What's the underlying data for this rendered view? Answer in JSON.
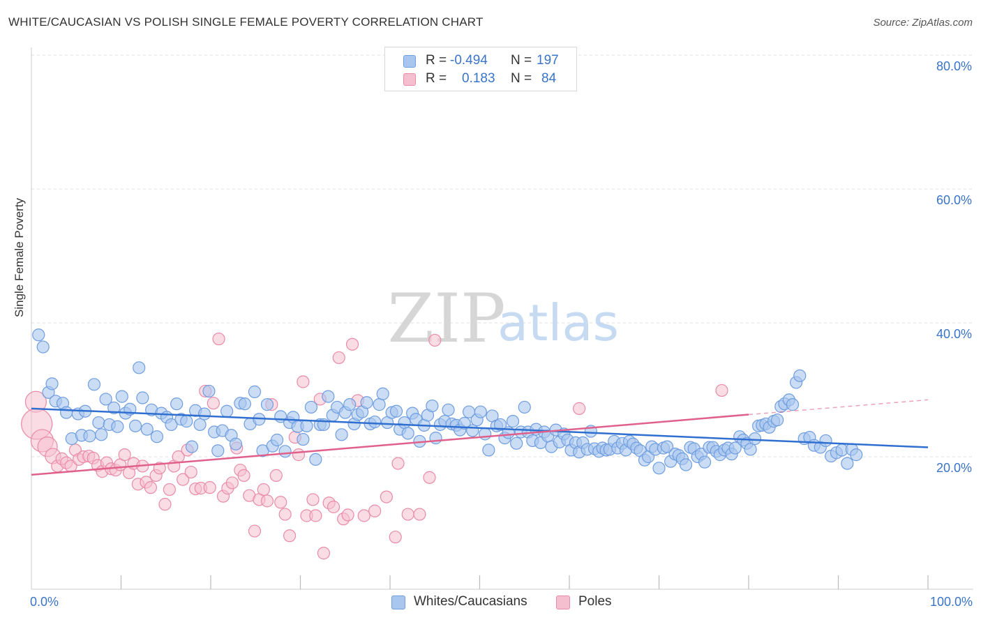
{
  "header": {
    "title": "WHITE/CAUCASIAN VS POLISH SINGLE FEMALE POVERTY CORRELATION CHART",
    "source": "Source: ZipAtlas.com"
  },
  "watermark": {
    "zip": "ZIP",
    "atlas": "atlas"
  },
  "legend": {
    "r_label": "R =",
    "n_label": "N =",
    "series": [
      {
        "r": "-0.494",
        "n": "197"
      },
      {
        "r": "0.183",
        "n": "84"
      }
    ]
  },
  "bottom_legend": [
    {
      "label": "Whites/Caucasians"
    },
    {
      "label": "Poles"
    }
  ],
  "colors": {
    "blue_fill": "#a9c6ef",
    "blue_stroke": "#6e9de0",
    "blue_line": "#2f6fd0",
    "pink_fill": "#f6bfd0",
    "pink_stroke": "#e98aa8",
    "pink_line": "#e0608c",
    "tick_text": "#3a74c9",
    "grid": "#dddddd"
  },
  "chart_data": {
    "type": "scatter",
    "title": "WHITE/CAUCASIAN VS POLISH SINGLE FEMALE POVERTY CORRELATION CHART",
    "xlabel": "",
    "ylabel": "Single Female Poverty",
    "xlim": [
      0,
      100
    ],
    "ylim": [
      0,
      80
    ],
    "y_ticks": [
      {
        "value": 20,
        "label": "20.0%"
      },
      {
        "value": 40,
        "label": "40.0%"
      },
      {
        "value": 60,
        "label": "60.0%"
      },
      {
        "value": 80,
        "label": "80.0%"
      }
    ],
    "x_tick_labels": [
      {
        "value": 0,
        "label": "0.0%"
      },
      {
        "value": 100,
        "label": "100.0%"
      }
    ],
    "x_minor_ticks": [
      10,
      20,
      30,
      40,
      50,
      60,
      70,
      80,
      90,
      100
    ],
    "grid": true,
    "legend_position": "top-center",
    "series": [
      {
        "name": "Whites/Caucasians",
        "r": -0.494,
        "n": 197,
        "trend": {
          "x": [
            0,
            100
          ],
          "y": [
            27.2,
            21.4
          ]
        },
        "points": [
          [
            0.8,
            38.2
          ],
          [
            1.3,
            36.4
          ],
          [
            1.9,
            29.6
          ],
          [
            2.3,
            30.9
          ],
          [
            2.7,
            28.3
          ],
          [
            3.5,
            28.0
          ],
          [
            3.9,
            26.6
          ],
          [
            4.5,
            22.7
          ],
          [
            5.2,
            26.4
          ],
          [
            5.6,
            23.2
          ],
          [
            6.0,
            26.8
          ],
          [
            6.5,
            23.1
          ],
          [
            7.0,
            30.8
          ],
          [
            7.5,
            25.1
          ],
          [
            7.8,
            23.3
          ],
          [
            8.3,
            28.6
          ],
          [
            8.7,
            24.8
          ],
          [
            9.2,
            27.3
          ],
          [
            9.6,
            24.5
          ],
          [
            10.1,
            29.0
          ],
          [
            10.5,
            26.5
          ],
          [
            11.0,
            27.1
          ],
          [
            11.6,
            24.6
          ],
          [
            12.0,
            33.3
          ],
          [
            12.4,
            28.8
          ],
          [
            12.9,
            24.1
          ],
          [
            13.4,
            27.0
          ],
          [
            14.0,
            23.0
          ],
          [
            14.5,
            26.5
          ],
          [
            15.1,
            25.9
          ],
          [
            15.6,
            24.8
          ],
          [
            16.2,
            27.9
          ],
          [
            16.7,
            25.6
          ],
          [
            17.3,
            25.3
          ],
          [
            17.9,
            21.5
          ],
          [
            18.3,
            26.9
          ],
          [
            18.8,
            24.8
          ],
          [
            19.3,
            26.4
          ],
          [
            19.8,
            29.8
          ],
          [
            20.4,
            23.7
          ],
          [
            20.8,
            20.9
          ],
          [
            21.3,
            23.9
          ],
          [
            21.8,
            26.8
          ],
          [
            22.3,
            23.2
          ],
          [
            22.8,
            21.9
          ],
          [
            23.3,
            28.0
          ],
          [
            23.8,
            27.9
          ],
          [
            24.4,
            24.9
          ],
          [
            24.9,
            29.7
          ],
          [
            25.4,
            25.6
          ],
          [
            25.8,
            20.9
          ],
          [
            26.3,
            27.8
          ],
          [
            26.9,
            21.6
          ],
          [
            27.4,
            22.5
          ],
          [
            27.8,
            26.0
          ],
          [
            28.3,
            20.8
          ],
          [
            28.8,
            25.1
          ],
          [
            29.2,
            25.9
          ],
          [
            29.7,
            24.5
          ],
          [
            30.3,
            22.6
          ],
          [
            30.7,
            24.6
          ],
          [
            31.2,
            27.4
          ],
          [
            31.7,
            19.6
          ],
          [
            32.2,
            24.8
          ],
          [
            32.6,
            24.8
          ],
          [
            33.1,
            29.0
          ],
          [
            33.6,
            26.2
          ],
          [
            34.1,
            27.4
          ],
          [
            34.6,
            23.3
          ],
          [
            35.0,
            26.6
          ],
          [
            35.5,
            27.8
          ],
          [
            36.0,
            24.9
          ],
          [
            36.4,
            26.3
          ],
          [
            36.9,
            26.7
          ],
          [
            37.4,
            28.1
          ],
          [
            37.8,
            24.9
          ],
          [
            38.3,
            25.2
          ],
          [
            38.8,
            27.8
          ],
          [
            39.2,
            29.4
          ],
          [
            39.7,
            25.1
          ],
          [
            40.2,
            26.6
          ],
          [
            40.7,
            26.8
          ],
          [
            41.1,
            24.1
          ],
          [
            41.6,
            25.1
          ],
          [
            42.0,
            23.5
          ],
          [
            42.5,
            26.5
          ],
          [
            42.9,
            25.6
          ],
          [
            43.3,
            22.3
          ],
          [
            43.8,
            24.7
          ],
          [
            44.2,
            26.2
          ],
          [
            44.7,
            27.6
          ],
          [
            45.1,
            22.8
          ],
          [
            45.6,
            24.8
          ],
          [
            46.1,
            25.3
          ],
          [
            46.5,
            27.0
          ],
          [
            46.9,
            24.9
          ],
          [
            47.4,
            24.7
          ],
          [
            47.8,
            24.0
          ],
          [
            48.3,
            25.0
          ],
          [
            48.8,
            26.7
          ],
          [
            49.2,
            23.9
          ],
          [
            49.7,
            25.5
          ],
          [
            50.1,
            26.7
          ],
          [
            50.6,
            23.4
          ],
          [
            51.0,
            21.0
          ],
          [
            51.4,
            26.1
          ],
          [
            51.9,
            24.6
          ],
          [
            52.3,
            24.8
          ],
          [
            52.8,
            22.8
          ],
          [
            53.2,
            23.6
          ],
          [
            53.7,
            25.3
          ],
          [
            54.1,
            22.0
          ],
          [
            54.6,
            23.7
          ],
          [
            55.0,
            27.4
          ],
          [
            55.4,
            23.7
          ],
          [
            55.9,
            22.4
          ],
          [
            56.3,
            24.1
          ],
          [
            56.8,
            22.1
          ],
          [
            57.2,
            23.7
          ],
          [
            57.6,
            23.1
          ],
          [
            58.0,
            21.5
          ],
          [
            58.5,
            24.0
          ],
          [
            58.9,
            22.2
          ],
          [
            59.4,
            23.4
          ],
          [
            59.8,
            22.5
          ],
          [
            60.2,
            21.0
          ],
          [
            60.7,
            22.1
          ],
          [
            61.1,
            20.7
          ],
          [
            61.5,
            22.1
          ],
          [
            62.0,
            21.1
          ],
          [
            62.4,
            23.8
          ],
          [
            62.8,
            21.2
          ],
          [
            63.3,
            20.8
          ],
          [
            63.7,
            21.3
          ],
          [
            64.1,
            21.0
          ],
          [
            64.5,
            21.1
          ],
          [
            65.0,
            22.3
          ],
          [
            65.4,
            21.3
          ],
          [
            65.9,
            22.0
          ],
          [
            66.3,
            21.0
          ],
          [
            66.7,
            22.3
          ],
          [
            67.1,
            21.9
          ],
          [
            67.5,
            21.3
          ],
          [
            67.9,
            20.9
          ],
          [
            68.4,
            19.5
          ],
          [
            68.8,
            20.0
          ],
          [
            69.2,
            21.5
          ],
          [
            69.6,
            21.1
          ],
          [
            70.0,
            18.3
          ],
          [
            70.5,
            21.3
          ],
          [
            70.9,
            21.5
          ],
          [
            71.3,
            19.3
          ],
          [
            71.8,
            20.4
          ],
          [
            72.2,
            20.2
          ],
          [
            72.6,
            19.7
          ],
          [
            73.0,
            18.8
          ],
          [
            73.5,
            21.4
          ],
          [
            73.9,
            21.2
          ],
          [
            74.3,
            20.0
          ],
          [
            74.7,
            20.4
          ],
          [
            75.1,
            19.2
          ],
          [
            75.6,
            21.4
          ],
          [
            76.0,
            21.4
          ],
          [
            76.4,
            20.8
          ],
          [
            76.8,
            20.3
          ],
          [
            77.3,
            21.0
          ],
          [
            77.7,
            21.3
          ],
          [
            78.1,
            20.4
          ],
          [
            78.5,
            21.3
          ],
          [
            79.0,
            23.0
          ],
          [
            79.4,
            22.5
          ],
          [
            79.8,
            22.0
          ],
          [
            80.2,
            21.1
          ],
          [
            80.7,
            22.7
          ],
          [
            81.1,
            24.6
          ],
          [
            81.5,
            24.7
          ],
          [
            81.9,
            24.9
          ],
          [
            82.3,
            24.4
          ],
          [
            82.8,
            25.3
          ],
          [
            83.2,
            25.5
          ],
          [
            83.6,
            27.5
          ],
          [
            84.0,
            27.9
          ],
          [
            84.5,
            28.5
          ],
          [
            84.9,
            27.8
          ],
          [
            85.3,
            31.1
          ],
          [
            85.7,
            32.1
          ],
          [
            86.2,
            22.7
          ],
          [
            86.8,
            22.9
          ],
          [
            87.3,
            21.7
          ],
          [
            88.0,
            21.4
          ],
          [
            88.6,
            22.4
          ],
          [
            89.2,
            20.1
          ],
          [
            89.8,
            20.6
          ],
          [
            90.4,
            21.0
          ],
          [
            91.0,
            19.0
          ],
          [
            91.5,
            21.1
          ],
          [
            92.0,
            20.3
          ]
        ]
      },
      {
        "name": "Poles",
        "r": 0.183,
        "n": 84,
        "trend": {
          "x": [
            0,
            80
          ],
          "y": [
            17.3,
            26.3
          ]
        },
        "trend_dashed": {
          "x": [
            80,
            100
          ],
          "y": [
            26.3,
            28.5
          ]
        },
        "points": [
          [
            0.5,
            28.2
          ],
          [
            0.6,
            24.9
          ],
          [
            1.2,
            22.4
          ],
          [
            1.8,
            21.5
          ],
          [
            2.4,
            20.1
          ],
          [
            2.9,
            18.6
          ],
          [
            3.4,
            19.7
          ],
          [
            3.9,
            19.1
          ],
          [
            4.4,
            18.6
          ],
          [
            4.9,
            21.0
          ],
          [
            5.3,
            19.6
          ],
          [
            5.8,
            20.0
          ],
          [
            6.4,
            20.1
          ],
          [
            6.9,
            19.8
          ],
          [
            7.4,
            18.7
          ],
          [
            7.9,
            17.8
          ],
          [
            8.4,
            19.1
          ],
          [
            8.9,
            18.2
          ],
          [
            9.4,
            18.0
          ],
          [
            9.9,
            18.8
          ],
          [
            10.4,
            20.3
          ],
          [
            10.9,
            17.6
          ],
          [
            11.4,
            19.0
          ],
          [
            11.9,
            15.9
          ],
          [
            12.4,
            18.6
          ],
          [
            12.8,
            16.2
          ],
          [
            13.3,
            15.4
          ],
          [
            13.9,
            17.2
          ],
          [
            14.3,
            18.3
          ],
          [
            14.9,
            12.9
          ],
          [
            15.4,
            15.1
          ],
          [
            15.9,
            18.6
          ],
          [
            16.4,
            20.0
          ],
          [
            16.9,
            16.6
          ],
          [
            17.4,
            21.0
          ],
          [
            17.8,
            17.7
          ],
          [
            18.3,
            15.2
          ],
          [
            18.9,
            15.3
          ],
          [
            19.4,
            29.8
          ],
          [
            19.9,
            15.4
          ],
          [
            20.3,
            28.0
          ],
          [
            20.9,
            37.6
          ],
          [
            21.4,
            14.1
          ],
          [
            21.9,
            15.3
          ],
          [
            22.4,
            16.1
          ],
          [
            22.9,
            21.3
          ],
          [
            23.3,
            18.0
          ],
          [
            23.7,
            17.2
          ],
          [
            24.3,
            14.2
          ],
          [
            24.9,
            8.9
          ],
          [
            25.4,
            13.6
          ],
          [
            25.9,
            15.1
          ],
          [
            26.3,
            13.4
          ],
          [
            26.8,
            27.8
          ],
          [
            27.3,
            17.2
          ],
          [
            27.8,
            13.2
          ],
          [
            28.3,
            11.4
          ],
          [
            28.8,
            8.2
          ],
          [
            29.4,
            22.9
          ],
          [
            29.8,
            20.3
          ],
          [
            30.3,
            31.2
          ],
          [
            30.7,
            11.2
          ],
          [
            31.4,
            13.6
          ],
          [
            31.7,
            11.2
          ],
          [
            32.2,
            28.6
          ],
          [
            32.6,
            5.6
          ],
          [
            33.2,
            13.1
          ],
          [
            33.7,
            12.5
          ],
          [
            34.3,
            34.8
          ],
          [
            34.8,
            10.7
          ],
          [
            35.3,
            11.3
          ],
          [
            35.8,
            36.8
          ],
          [
            36.4,
            28.4
          ],
          [
            37.1,
            11.2
          ],
          [
            38.3,
            11.9
          ],
          [
            39.6,
            14.0
          ],
          [
            40.6,
            8.0
          ],
          [
            40.9,
            19.0
          ],
          [
            42.0,
            11.4
          ],
          [
            43.3,
            11.4
          ],
          [
            44.4,
            16.9
          ],
          [
            45.0,
            37.4
          ],
          [
            77.0,
            29.9
          ],
          [
            61.1,
            27.2
          ]
        ]
      }
    ]
  }
}
